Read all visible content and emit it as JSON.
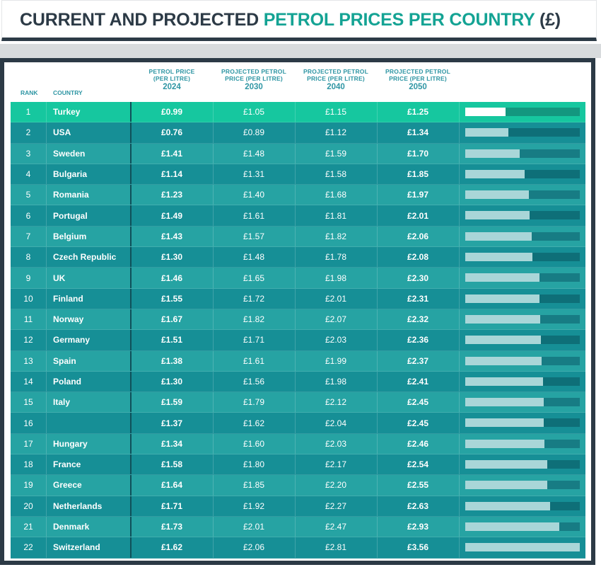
{
  "title": {
    "part1": "CURRENT AND PROJECTED ",
    "part2": "PETROL PRICES PER COUNTRY",
    "part3": " (£)"
  },
  "headers": {
    "rank": "RANK",
    "country": "COUNTRY",
    "col1": {
      "line1": "PETROL PRICE",
      "line2": "(PER LITRE)",
      "year": "2024"
    },
    "col2": {
      "line1": "PROJECTED PETROL",
      "line2": "PRICE (PER LITRE)",
      "year": "2030"
    },
    "col3": {
      "line1": "PROJECTED PETROL",
      "line2": "PRICE (PER LITRE)",
      "year": "2040"
    },
    "col4": {
      "line1": "PROJECTED PETROL",
      "line2": "PRICE (PER LITRE)",
      "year": "2050"
    }
  },
  "colors": {
    "dark": "#2c3a46",
    "accent": "#14a394",
    "header_text": "#2f96a4",
    "row_highlight": "#16c79f",
    "row_dark": "#168f96",
    "row_light": "#26a3a3",
    "bar_fill": "#a9d6d8"
  },
  "chart_data": {
    "type": "table",
    "title": "CURRENT AND PROJECTED PETROL PRICES PER COUNTRY (£)",
    "columns": [
      "RANK",
      "COUNTRY",
      "PETROL PRICE (PER LITRE) 2024",
      "PROJECTED PETROL PRICE (PER LITRE) 2030",
      "PROJECTED PETROL PRICE (PER LITRE) 2040",
      "PROJECTED PETROL PRICE (PER LITRE) 2050"
    ],
    "bar_scale_max": 3.56,
    "rows": [
      {
        "rank": "1",
        "country": "Turkey",
        "p2024": "£0.99",
        "p2030": "£1.05",
        "p2040": "£1.15",
        "p2050": "£1.25",
        "v2050": 1.25
      },
      {
        "rank": "2",
        "country": "USA",
        "p2024": "£0.76",
        "p2030": "£0.89",
        "p2040": "£1.12",
        "p2050": "£1.34",
        "v2050": 1.34
      },
      {
        "rank": "3",
        "country": "Sweden",
        "p2024": "£1.41",
        "p2030": "£1.48",
        "p2040": "£1.59",
        "p2050": "£1.70",
        "v2050": 1.7
      },
      {
        "rank": "4",
        "country": "Bulgaria",
        "p2024": "£1.14",
        "p2030": "£1.31",
        "p2040": "£1.58",
        "p2050": "£1.85",
        "v2050": 1.85
      },
      {
        "rank": "5",
        "country": "Romania",
        "p2024": "£1.23",
        "p2030": "£1.40",
        "p2040": "£1.68",
        "p2050": "£1.97",
        "v2050": 1.97
      },
      {
        "rank": "6",
        "country": "Portugal",
        "p2024": "£1.49",
        "p2030": "£1.61",
        "p2040": "£1.81",
        "p2050": "£2.01",
        "v2050": 2.01
      },
      {
        "rank": "7",
        "country": "Belgium",
        "p2024": "£1.43",
        "p2030": "£1.57",
        "p2040": "£1.82",
        "p2050": "£2.06",
        "v2050": 2.06
      },
      {
        "rank": "8",
        "country": "Czech Republic",
        "p2024": "£1.30",
        "p2030": "£1.48",
        "p2040": "£1.78",
        "p2050": "£2.08",
        "v2050": 2.08
      },
      {
        "rank": "9",
        "country": "UK",
        "p2024": "£1.46",
        "p2030": "£1.65",
        "p2040": "£1.98",
        "p2050": "£2.30",
        "v2050": 2.3
      },
      {
        "rank": "10",
        "country": "Finland",
        "p2024": "£1.55",
        "p2030": "£1.72",
        "p2040": "£2.01",
        "p2050": "£2.31",
        "v2050": 2.31
      },
      {
        "rank": "11",
        "country": "Norway",
        "p2024": "£1.67",
        "p2030": "£1.82",
        "p2040": "£2.07",
        "p2050": "£2.32",
        "v2050": 2.32
      },
      {
        "rank": "12",
        "country": "Germany",
        "p2024": "£1.51",
        "p2030": "£1.71",
        "p2040": "£2.03",
        "p2050": "£2.36",
        "v2050": 2.36
      },
      {
        "rank": "13",
        "country": "Spain",
        "p2024": "£1.38",
        "p2030": "£1.61",
        "p2040": "£1.99",
        "p2050": "£2.37",
        "v2050": 2.37
      },
      {
        "rank": "14",
        "country": "Poland",
        "p2024": "£1.30",
        "p2030": "£1.56",
        "p2040": "£1.98",
        "p2050": "£2.41",
        "v2050": 2.41
      },
      {
        "rank": "15",
        "country": "Italy",
        "p2024": "£1.59",
        "p2030": "£1.79",
        "p2040": "£2.12",
        "p2050": "£2.45",
        "v2050": 2.45
      },
      {
        "rank": "16",
        "country": "",
        "p2024": "£1.37",
        "p2030": "£1.62",
        "p2040": "£2.04",
        "p2050": "£2.45",
        "v2050": 2.45
      },
      {
        "rank": "17",
        "country": "Hungary",
        "p2024": "£1.34",
        "p2030": "£1.60",
        "p2040": "£2.03",
        "p2050": "£2.46",
        "v2050": 2.46
      },
      {
        "rank": "18",
        "country": "France",
        "p2024": "£1.58",
        "p2030": "£1.80",
        "p2040": "£2.17",
        "p2050": "£2.54",
        "v2050": 2.54
      },
      {
        "rank": "19",
        "country": "Greece",
        "p2024": "£1.64",
        "p2030": "£1.85",
        "p2040": "£2.20",
        "p2050": "£2.55",
        "v2050": 2.55
      },
      {
        "rank": "20",
        "country": "Netherlands",
        "p2024": "£1.71",
        "p2030": "£1.92",
        "p2040": "£2.27",
        "p2050": "£2.63",
        "v2050": 2.63
      },
      {
        "rank": "21",
        "country": "Denmark",
        "p2024": "£1.73",
        "p2030": "£2.01",
        "p2040": "£2.47",
        "p2050": "£2.93",
        "v2050": 2.93
      },
      {
        "rank": "22",
        "country": "Switzerland",
        "p2024": "£1.62",
        "p2030": "£2.06",
        "p2040": "£2.81",
        "p2050": "£3.56",
        "v2050": 3.56
      }
    ]
  }
}
